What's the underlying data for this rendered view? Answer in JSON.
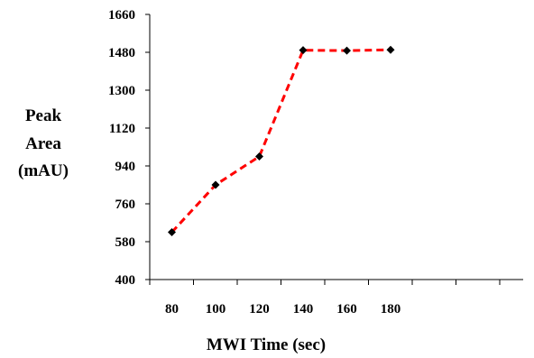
{
  "chart_data": {
    "type": "line",
    "title": "",
    "xlabel": "MWI Time (sec)",
    "ylabel_lines": [
      "Peak",
      "Area",
      "(mAU)"
    ],
    "categories": [
      "80",
      "100",
      "120",
      "140",
      "160",
      "180"
    ],
    "y_ticks": [
      "400",
      "580",
      "760",
      "940",
      "1120",
      "1300",
      "1480",
      "1660"
    ],
    "ylim": [
      400,
      1660
    ],
    "series": [
      {
        "x": [
          80,
          100,
          120,
          140,
          160,
          180
        ],
        "values": [
          625,
          850,
          985,
          1490,
          1488,
          1492
        ],
        "color": "#ff0000",
        "line_style": "dashed",
        "marker": "diamond",
        "marker_color": "#000000"
      }
    ],
    "grid": false,
    "legend": "none"
  }
}
